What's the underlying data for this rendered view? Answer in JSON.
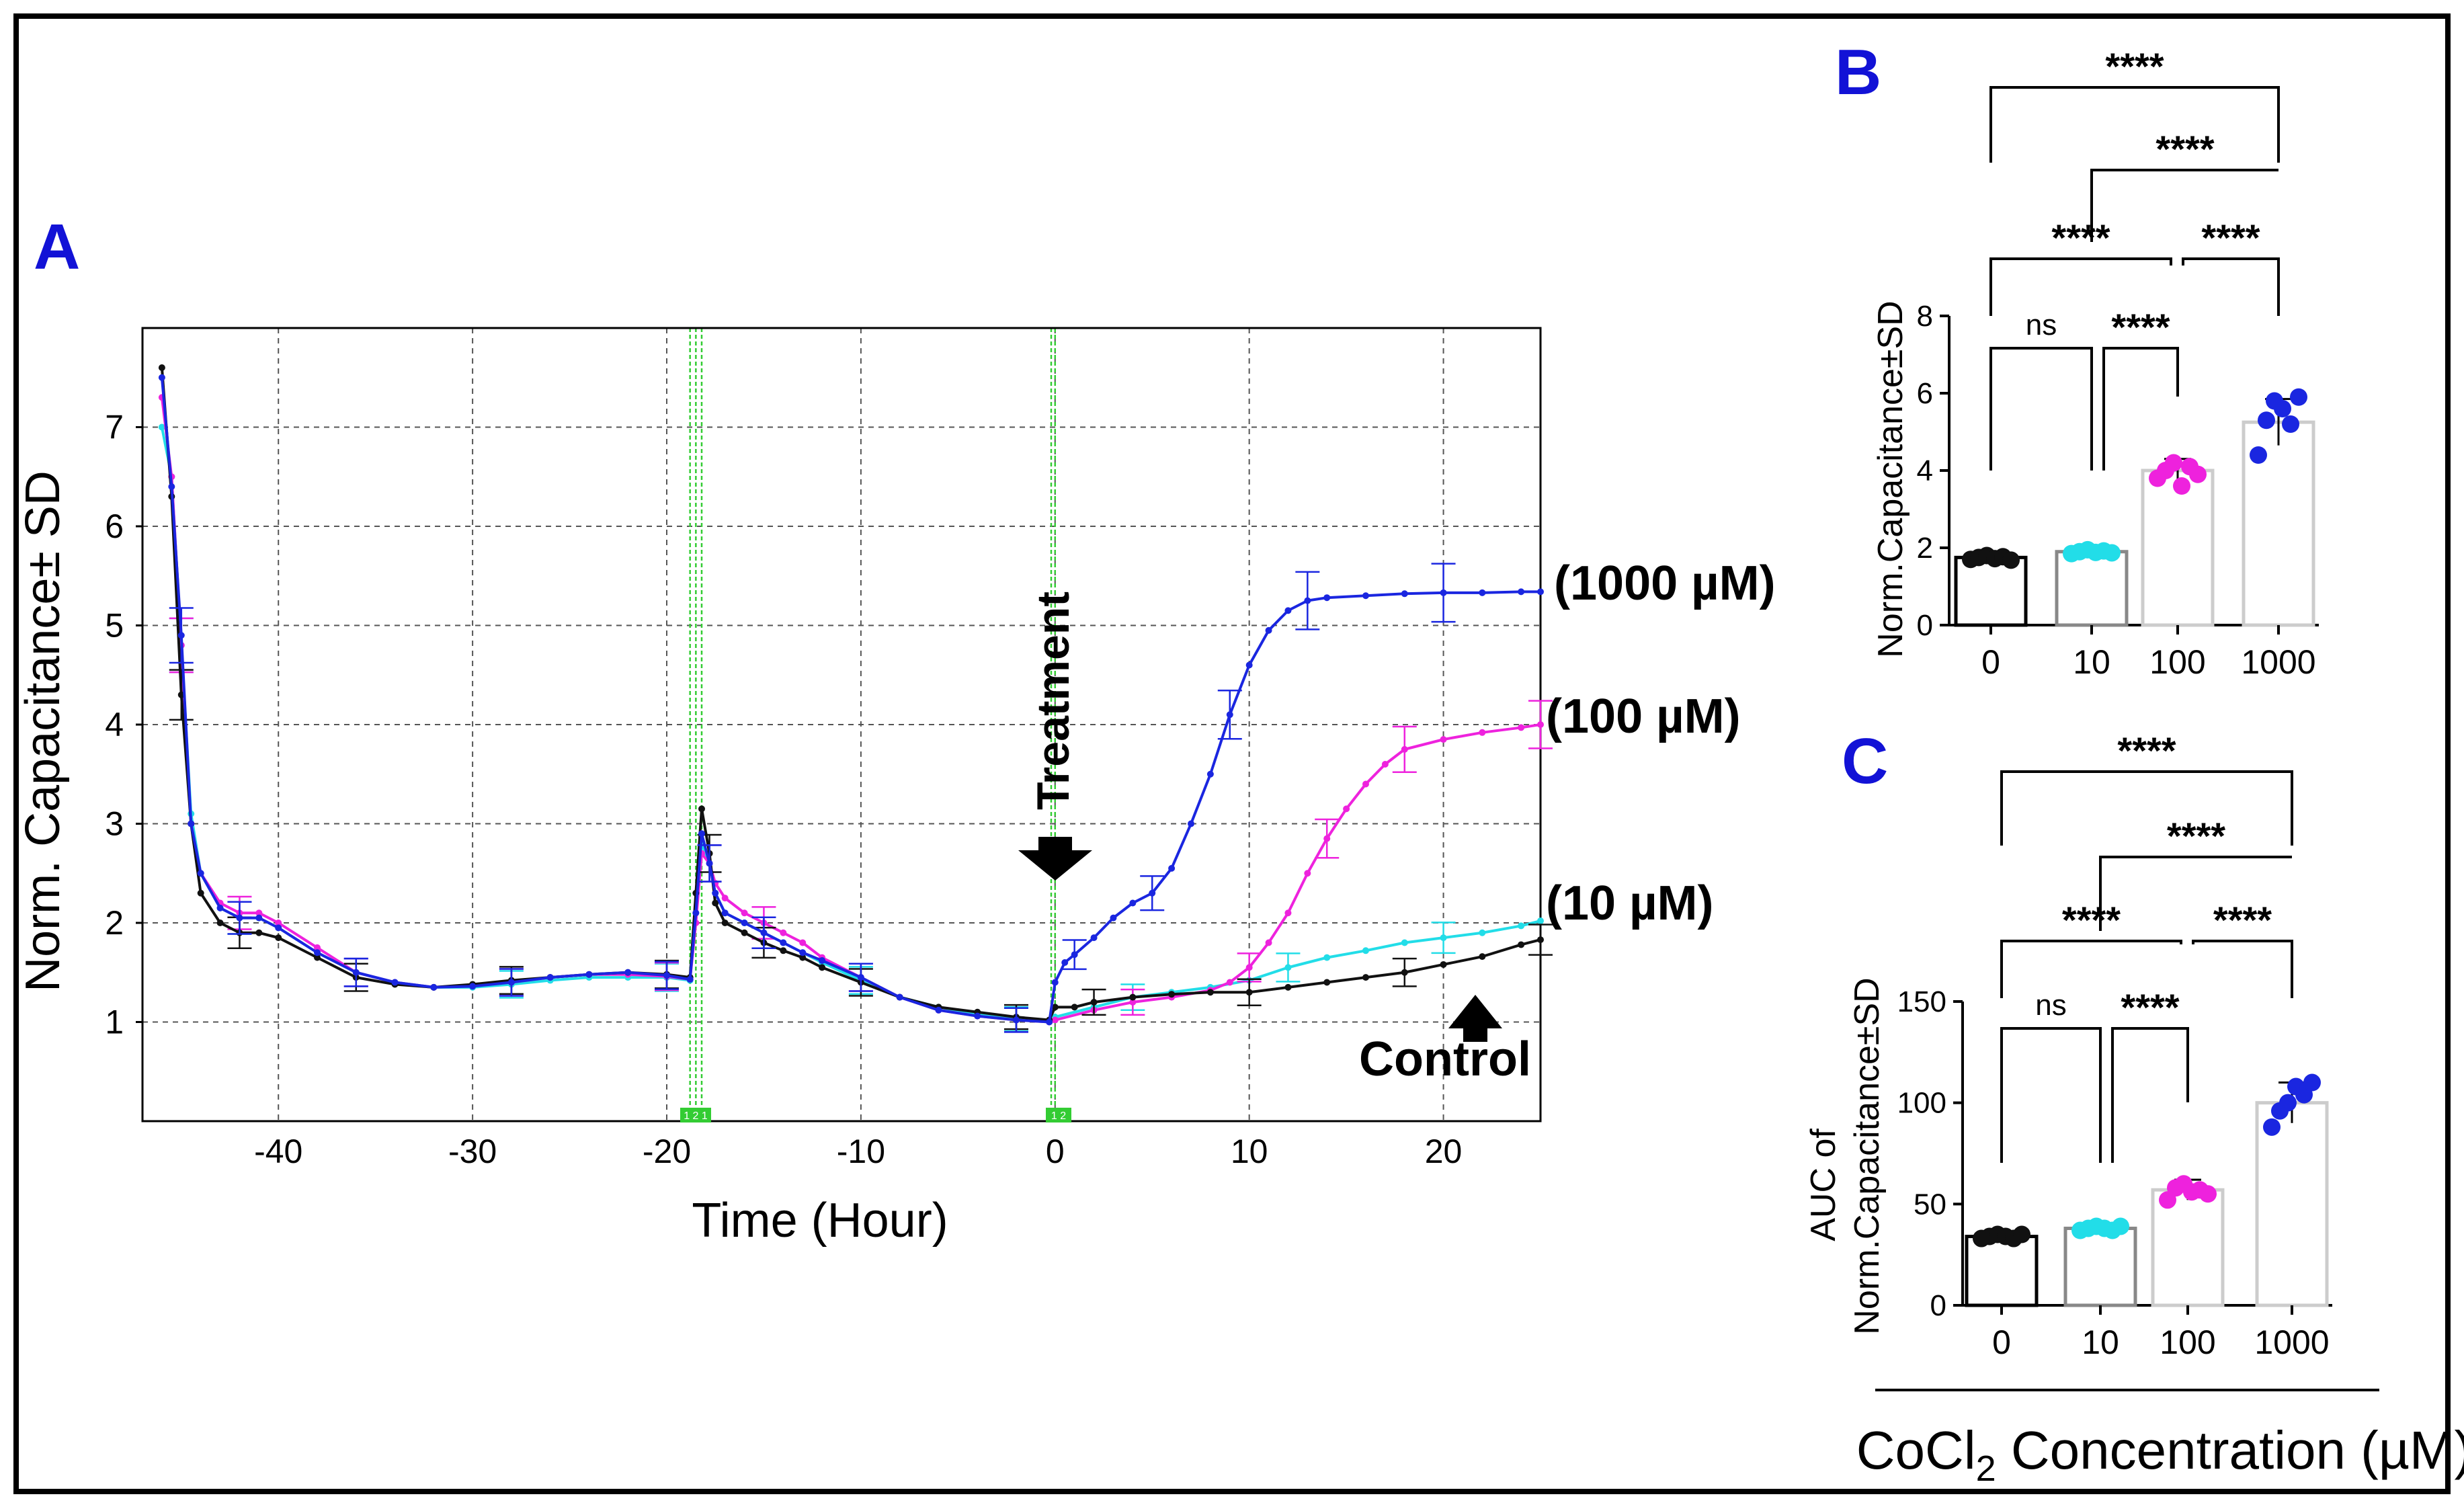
{
  "figure": {
    "colors": {
      "control": "#111111",
      "c10": "#22dde8",
      "c100": "#ee22dd",
      "c1000": "#1a26e0",
      "panel_letter": "#1212d6",
      "vline": "#33cc33",
      "marker_fill": "#33cc33"
    },
    "markers": [
      "1 2 1",
      "1 2"
    ],
    "x_axis_title_prefix": "CoCl",
    "x_axis_title_sub": "2",
    "x_axis_title_suffix": " Concentration (µM)"
  },
  "chart_data": [
    {
      "id": "A",
      "panel_label": "A",
      "type": "line",
      "xlabel": "Time (Hour)",
      "ylabel": "Norm. Capacitance± SD",
      "xlim": [
        -47,
        25
      ],
      "ylim": [
        0,
        8
      ],
      "xticks": [
        -40,
        -30,
        -20,
        -10,
        0,
        10,
        20
      ],
      "xtick_labels": [
        "-40",
        "-30",
        "-20",
        "-10",
        "0",
        "10",
        "20"
      ],
      "yticks": [
        1,
        2,
        3,
        4,
        5,
        6,
        7
      ],
      "ytick_labels": [
        "1",
        "2",
        "3",
        "4",
        "5",
        "6",
        "7"
      ],
      "grid": true,
      "event_lines": [
        -18.8,
        -18.5,
        -18.2,
        -0.2,
        0.0
      ],
      "annotation_treatment": "Treatment",
      "annotation_control": "Control",
      "series_labels": [
        "(1000 µM)",
        "(100 µM)",
        "(10 µM)"
      ],
      "series": [
        {
          "name": "Control",
          "color_key": "control",
          "x": [
            -46,
            -45.5,
            -45,
            -44.5,
            -44,
            -43,
            -42,
            -41,
            -40,
            -38,
            -36,
            -34,
            -32,
            -30,
            -28,
            -26,
            -24,
            -22,
            -20,
            -18.8,
            -18.5,
            -18.2,
            -17.8,
            -17.5,
            -17,
            -16,
            -15,
            -14,
            -13,
            -12,
            -10,
            -8,
            -6,
            -4,
            -2,
            -0.3,
            0,
            1,
            2,
            4,
            6,
            8,
            10,
            12,
            14,
            16,
            18,
            20,
            22,
            24,
            25
          ],
          "y": [
            7.6,
            6.3,
            4.3,
            3.0,
            2.3,
            2.0,
            1.9,
            1.9,
            1.85,
            1.65,
            1.45,
            1.38,
            1.35,
            1.38,
            1.42,
            1.45,
            1.48,
            1.5,
            1.48,
            1.45,
            2.3,
            3.15,
            2.7,
            2.2,
            2.0,
            1.9,
            1.8,
            1.72,
            1.65,
            1.55,
            1.4,
            1.25,
            1.15,
            1.1,
            1.05,
            1.02,
            1.15,
            1.15,
            1.2,
            1.25,
            1.28,
            1.3,
            1.3,
            1.35,
            1.4,
            1.45,
            1.5,
            1.58,
            1.66,
            1.78,
            1.83
          ]
        },
        {
          "name": "10 µM",
          "color_key": "c10",
          "x": [
            -46,
            -45.5,
            -45,
            -44.5,
            -44,
            -43,
            -42,
            -41,
            -40,
            -38,
            -36,
            -34,
            -32,
            -30,
            -28,
            -26,
            -24,
            -22,
            -20,
            -18.8,
            -18.5,
            -18.2,
            -17.8,
            -17.5,
            -17,
            -16,
            -15,
            -14,
            -13,
            -12,
            -10,
            -8,
            -6,
            -4,
            -2,
            -0.3,
            0,
            2,
            4,
            6,
            8,
            10,
            12,
            14,
            16,
            18,
            20,
            22,
            24,
            25
          ],
          "y": [
            7.0,
            6.5,
            4.8,
            3.1,
            2.5,
            2.15,
            2.05,
            2.05,
            1.95,
            1.7,
            1.5,
            1.4,
            1.35,
            1.35,
            1.38,
            1.42,
            1.45,
            1.45,
            1.45,
            1.42,
            2.1,
            2.8,
            2.6,
            2.3,
            2.1,
            2.0,
            1.9,
            1.8,
            1.7,
            1.6,
            1.42,
            1.25,
            1.15,
            1.08,
            1.03,
            1.0,
            1.05,
            1.15,
            1.25,
            1.3,
            1.35,
            1.42,
            1.55,
            1.65,
            1.72,
            1.8,
            1.85,
            1.9,
            1.97,
            2.02
          ]
        },
        {
          "name": "100 µM",
          "color_key": "c100",
          "x": [
            -46,
            -45.5,
            -45,
            -44.5,
            -44,
            -43,
            -42,
            -41,
            -40,
            -38,
            -36,
            -34,
            -32,
            -30,
            -28,
            -26,
            -24,
            -22,
            -20,
            -18.8,
            -18.5,
            -18.2,
            -17.8,
            -17.5,
            -17,
            -16,
            -15,
            -14,
            -13,
            -12,
            -10,
            -8,
            -6,
            -4,
            -2,
            -0.3,
            0,
            2,
            4,
            6,
            8,
            9,
            10,
            11,
            12,
            13,
            14,
            15,
            16,
            17,
            18,
            20,
            22,
            24,
            25
          ],
          "y": [
            7.3,
            6.5,
            4.8,
            3.0,
            2.5,
            2.2,
            2.1,
            2.1,
            2.0,
            1.75,
            1.5,
            1.4,
            1.35,
            1.37,
            1.4,
            1.45,
            1.48,
            1.48,
            1.46,
            1.43,
            2.0,
            2.7,
            2.6,
            2.4,
            2.25,
            2.1,
            2.0,
            1.9,
            1.8,
            1.65,
            1.45,
            1.25,
            1.12,
            1.06,
            1.02,
            1.0,
            1.02,
            1.12,
            1.2,
            1.25,
            1.32,
            1.4,
            1.55,
            1.8,
            2.1,
            2.5,
            2.85,
            3.15,
            3.4,
            3.6,
            3.75,
            3.85,
            3.92,
            3.97,
            4.0
          ]
        },
        {
          "name": "1000 µM",
          "color_key": "c1000",
          "x": [
            -46,
            -45.5,
            -45,
            -44.5,
            -44,
            -43,
            -42,
            -41,
            -40,
            -38,
            -36,
            -34,
            -32,
            -30,
            -28,
            -26,
            -24,
            -22,
            -20,
            -18.8,
            -18.5,
            -18.2,
            -17.8,
            -17.5,
            -17,
            -16,
            -15,
            -14,
            -13,
            -12,
            -10,
            -8,
            -6,
            -4,
            -2,
            -0.3,
            0,
            0.5,
            1,
            2,
            3,
            4,
            5,
            6,
            7,
            8,
            9,
            10,
            11,
            12,
            13,
            14,
            16,
            18,
            20,
            22,
            24,
            25
          ],
          "y": [
            7.5,
            6.4,
            4.9,
            3.0,
            2.5,
            2.15,
            2.05,
            2.05,
            1.95,
            1.7,
            1.5,
            1.4,
            1.35,
            1.36,
            1.4,
            1.45,
            1.48,
            1.5,
            1.47,
            1.43,
            2.1,
            2.9,
            2.6,
            2.3,
            2.1,
            2.0,
            1.9,
            1.8,
            1.7,
            1.62,
            1.45,
            1.25,
            1.12,
            1.06,
            1.02,
            1.0,
            1.4,
            1.6,
            1.68,
            1.85,
            2.05,
            2.2,
            2.3,
            2.55,
            3.0,
            3.5,
            4.1,
            4.6,
            4.95,
            5.15,
            5.25,
            5.28,
            5.3,
            5.32,
            5.33,
            5.33,
            5.34,
            5.34
          ]
        }
      ]
    },
    {
      "id": "B",
      "panel_label": "B",
      "type": "bar",
      "ylabel": "Norm.Capacitance±SD",
      "categories": [
        "0",
        "10",
        "100",
        "1000"
      ],
      "values": [
        1.75,
        1.9,
        4.0,
        5.25
      ],
      "errors": [
        0.1,
        0.1,
        0.3,
        0.6
      ],
      "points": [
        [
          1.7,
          1.75,
          1.8,
          1.72,
          1.77,
          1.68
        ],
        [
          1.85,
          1.9,
          1.95,
          1.88,
          1.92,
          1.87
        ],
        [
          3.8,
          4.0,
          4.2,
          3.6,
          4.1,
          3.9
        ],
        [
          4.4,
          5.3,
          5.8,
          5.6,
          5.2,
          5.9
        ]
      ],
      "ylim": [
        0,
        8
      ],
      "yticks": [
        0,
        2,
        4,
        6,
        8
      ],
      "ytick_labels": [
        "0",
        "2",
        "4",
        "6",
        "8"
      ],
      "comparisons": [
        {
          "a": 0,
          "b": 3,
          "label": "****"
        },
        {
          "a": 1,
          "b": 3,
          "label": "****"
        },
        {
          "a": 0,
          "b": 2,
          "label": "****"
        },
        {
          "a": 2,
          "b": 3,
          "label": "****"
        },
        {
          "a": 0,
          "b": 1,
          "label": "ns"
        },
        {
          "a": 1,
          "b": 2,
          "label": "****"
        }
      ]
    },
    {
      "id": "C",
      "panel_label": "C",
      "type": "bar",
      "ylabel_line1": "AUC of",
      "ylabel_line2": "Norm.Capacitance±SD",
      "categories": [
        "0",
        "10",
        "100",
        "1000"
      ],
      "values": [
        34,
        38,
        57,
        100
      ],
      "errors": [
        2,
        2,
        5,
        10
      ],
      "points": [
        [
          33,
          34,
          35,
          34,
          33,
          35
        ],
        [
          37,
          38,
          39,
          38,
          37,
          39
        ],
        [
          52,
          58,
          60,
          56,
          57,
          55
        ],
        [
          88,
          96,
          100,
          108,
          104,
          110
        ]
      ],
      "ylim": [
        0,
        150
      ],
      "yticks": [
        0,
        50,
        100,
        150
      ],
      "ytick_labels": [
        "0",
        "50",
        "100",
        "150"
      ],
      "comparisons": [
        {
          "a": 0,
          "b": 3,
          "label": "****"
        },
        {
          "a": 1,
          "b": 3,
          "label": "****"
        },
        {
          "a": 0,
          "b": 2,
          "label": "****"
        },
        {
          "a": 2,
          "b": 3,
          "label": "****"
        },
        {
          "a": 0,
          "b": 1,
          "label": "ns"
        },
        {
          "a": 1,
          "b": 2,
          "label": "****"
        }
      ]
    }
  ]
}
